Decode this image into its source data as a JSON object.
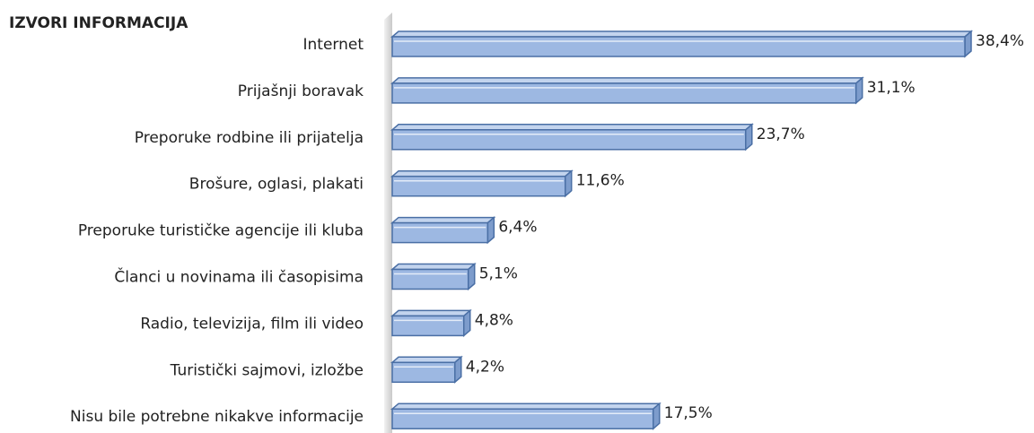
{
  "chart_data": {
    "type": "bar",
    "orientation": "horizontal",
    "title": "IZVORI INFORMACIJA",
    "categories": [
      "Internet",
      "Prijašnji boravak",
      "Preporuke rodbine ili prijatelja",
      "Brošure, oglasi, plakati",
      "Preporuke turističke agencije ili kluba",
      "Članci u novinama ili časopisima",
      "Radio, televizija, film ili video",
      "Turistički sajmovi, izložbe",
      "Nisu bile potrebne nikakve informacije"
    ],
    "values": [
      38.4,
      31.1,
      23.7,
      11.6,
      6.4,
      5.1,
      4.8,
      4.2,
      17.5
    ],
    "value_labels": [
      "38,4%",
      "31,1%",
      "23,7%",
      "11,6%",
      "6,4%",
      "5,1%",
      "4,8%",
      "4,2%",
      "17,5%"
    ],
    "color": "#9db8e2"
  }
}
